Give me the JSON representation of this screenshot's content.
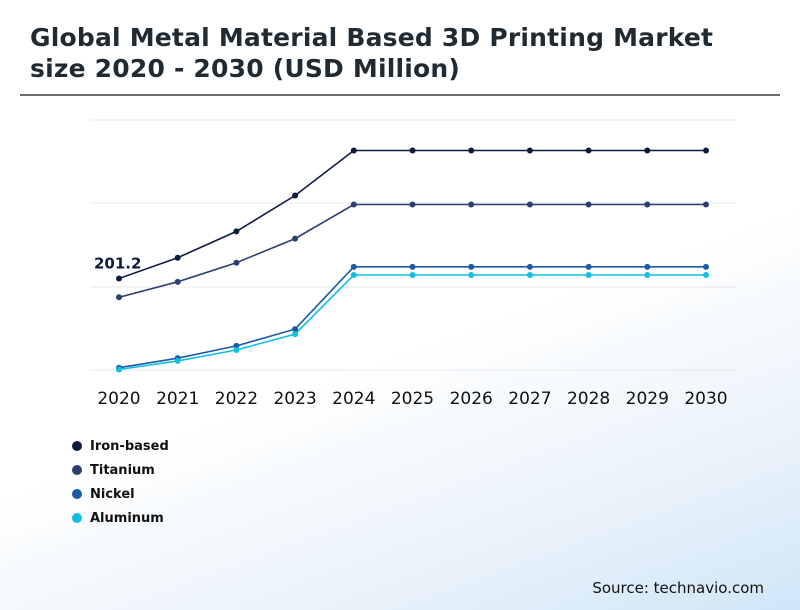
{
  "title": "Global Metal Material Based 3D Printing Market size 2020 - 2030 (USD Million)",
  "source": "Source: technavio.com",
  "chart_data": {
    "type": "line",
    "x": [
      "2020",
      "2021",
      "2022",
      "2023",
      "2024",
      "2025",
      "2026",
      "2027",
      "2028",
      "2029",
      "2030"
    ],
    "ylim": [
      0,
      550
    ],
    "grid": true,
    "legend_position": "bottom-left",
    "annotations": [
      {
        "series": "Iron-based",
        "x": "2020",
        "text": "201.2"
      }
    ],
    "series": [
      {
        "name": "Iron-based",
        "color": "#0d1b3e",
        "values": [
          201.2,
          247,
          305,
          384,
          483,
          483,
          483,
          483,
          483,
          483,
          483
        ]
      },
      {
        "name": "Titanium",
        "color": "#2c4070",
        "values": [
          160,
          194,
          236,
          289,
          364,
          364,
          364,
          364,
          364,
          364,
          364
        ]
      },
      {
        "name": "Nickel",
        "color": "#1a5aa6",
        "values": [
          5,
          26,
          53,
          90,
          227,
          227,
          227,
          227,
          227,
          227,
          227
        ]
      },
      {
        "name": "Aluminum",
        "color": "#11bfe0",
        "values": [
          1,
          20,
          44,
          79,
          209,
          209,
          209,
          209,
          209,
          209,
          209
        ]
      }
    ]
  }
}
